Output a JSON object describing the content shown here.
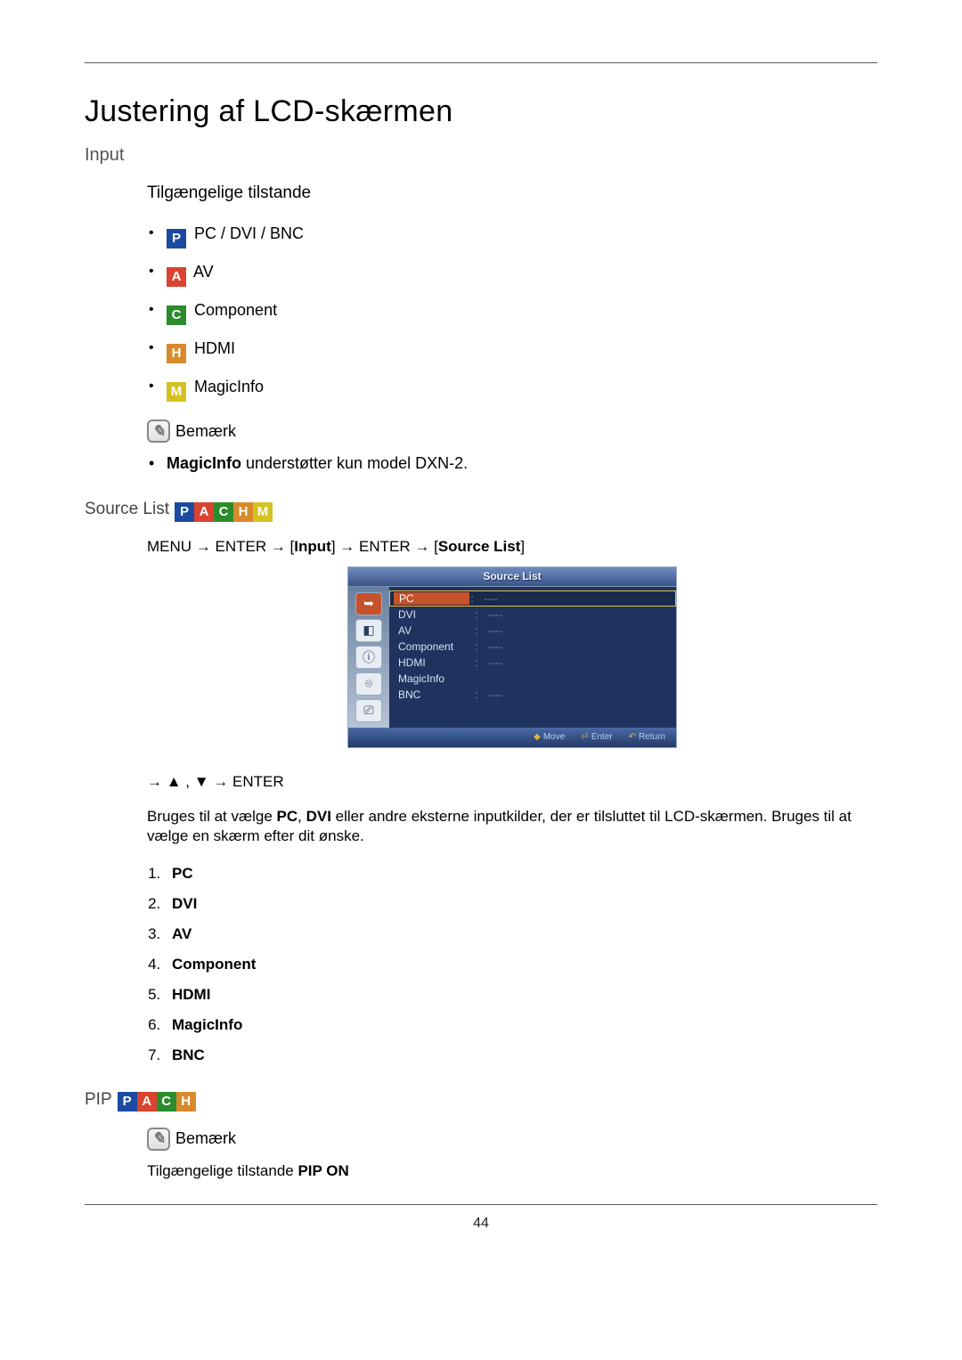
{
  "page": {
    "title": "Justering af LCD-skærmen",
    "number": "44"
  },
  "sections": {
    "input": {
      "heading": "Input",
      "sub_heading": "Tilgængelige tilstande",
      "modes": [
        {
          "badge": "P",
          "color": "#1c4aa0",
          "label": "PC / DVI / BNC"
        },
        {
          "badge": "A",
          "color": "#d9432f",
          "label": "AV"
        },
        {
          "badge": "C",
          "color": "#2b8c2b",
          "label": "Component"
        },
        {
          "badge": "H",
          "color": "#d98a2b",
          "label": "HDMI"
        },
        {
          "badge": "M",
          "color": "#d6c120",
          "label": "MagicInfo"
        }
      ],
      "note_label": "Bemærk",
      "note_items": [
        {
          "bold": "MagicInfo",
          "rest": " understøtter kun model DXN-2."
        }
      ]
    },
    "source_list": {
      "title": "Source List",
      "badges": [
        "P",
        "A",
        "C",
        "H",
        "M"
      ],
      "menu_path": {
        "pre": "MENU → ENTER → [",
        "input_bold": "Input",
        "mid": "] → ENTER → [",
        "src_bold": "Source List",
        "post": "]"
      },
      "osd": {
        "title": "Source List",
        "rows": [
          {
            "label": "PC",
            "value": "----",
            "selected": true
          },
          {
            "label": "DVI",
            "value": "----",
            "selected": false
          },
          {
            "label": "AV",
            "value": "----",
            "selected": false
          },
          {
            "label": "Component",
            "value": "----",
            "selected": false
          },
          {
            "label": "HDMI",
            "value": "----",
            "selected": false
          },
          {
            "label": "MagicInfo",
            "value": "",
            "selected": false
          },
          {
            "label": "BNC",
            "value": "----",
            "selected": false
          }
        ],
        "footer": {
          "move": "Move",
          "enter": "Enter",
          "return": "Return"
        }
      },
      "nav_line": "→ ▲ , ▼ → ENTER",
      "body_pre": "Bruges til at vælge ",
      "body_b1": "PC",
      "body_mid1": ", ",
      "body_b2": "DVI",
      "body_mid2": " eller andre eksterne inputkilder, der er tilsluttet til LCD-skærmen. Bruges til at vælge en skærm efter dit ønske.",
      "ordered": [
        "PC",
        "DVI",
        "AV",
        "Component",
        "HDMI",
        "MagicInfo",
        "BNC"
      ]
    },
    "pip": {
      "title": "PIP",
      "badges": [
        "P",
        "A",
        "C",
        "H"
      ],
      "note_label": "Bemærk",
      "line_pre": "Tilgængelige tilstande ",
      "line_bold": "PIP ON"
    }
  },
  "colors": {
    "text": "#000000",
    "heading_gray": "#555555",
    "rule": "#5a5a5a",
    "osd_bg": "#2b3c63",
    "osd_sel_border": "#e2c04a",
    "osd_sel_bg": "#c5522b"
  }
}
